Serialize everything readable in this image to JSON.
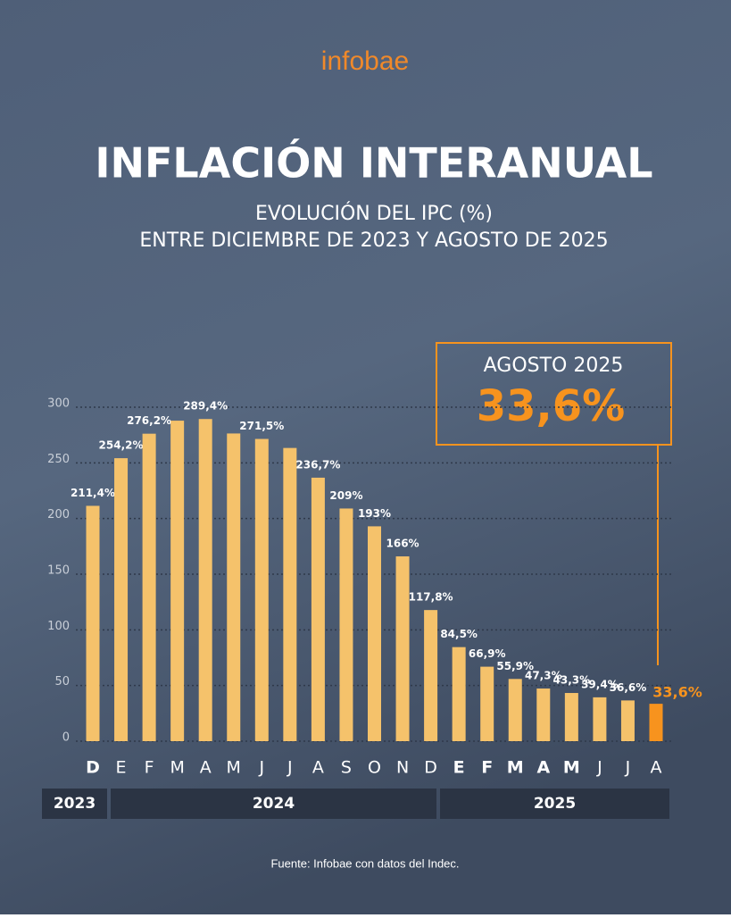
{
  "brand": "infobae",
  "footer": "Fuente: Infobae con datos del Indec.",
  "chart_data": {
    "type": "bar",
    "title": "INFLACIÓN INTERANUAL",
    "subtitle": [
      "EVOLUCIÓN DEL IPC (%)",
      "ENTRE DICIEMBRE DE 2023 Y AGOSTO DE 2025"
    ],
    "callout": {
      "label": "AGOSTO 2025",
      "value": "33,6%"
    },
    "categories": [
      "D",
      "E",
      "F",
      "M",
      "A",
      "M",
      "J",
      "J",
      "A",
      "S",
      "O",
      "N",
      "D",
      "E",
      "F",
      "M",
      "A",
      "M",
      "J",
      "J",
      "A"
    ],
    "years": [
      "2023",
      "2024",
      "2025"
    ],
    "values": [
      211.4,
      254.2,
      276.2,
      287.9,
      289.4,
      276.4,
      271.5,
      263.4,
      236.7,
      209,
      193,
      166,
      117.8,
      84.5,
      66.9,
      55.9,
      47.3,
      43.3,
      39.4,
      36.6,
      33.6
    ],
    "value_labels": [
      "211,4%",
      "254,2%",
      "276,2%",
      null,
      "289,4%",
      null,
      "271,5%",
      null,
      "236,7%",
      "209%",
      "193%",
      "166%",
      "117,8%",
      "84,5%",
      "66,9%",
      "55,9%",
      "47,3%",
      "43,3%",
      "39,4%",
      "36,6%",
      "33,6%"
    ],
    "color": "#f5c26b",
    "highlight_color": "#f7931e",
    "ylim": [
      0,
      300
    ],
    "yticks": [
      0,
      50,
      100,
      150,
      200,
      250,
      300
    ],
    "grid": true
  }
}
